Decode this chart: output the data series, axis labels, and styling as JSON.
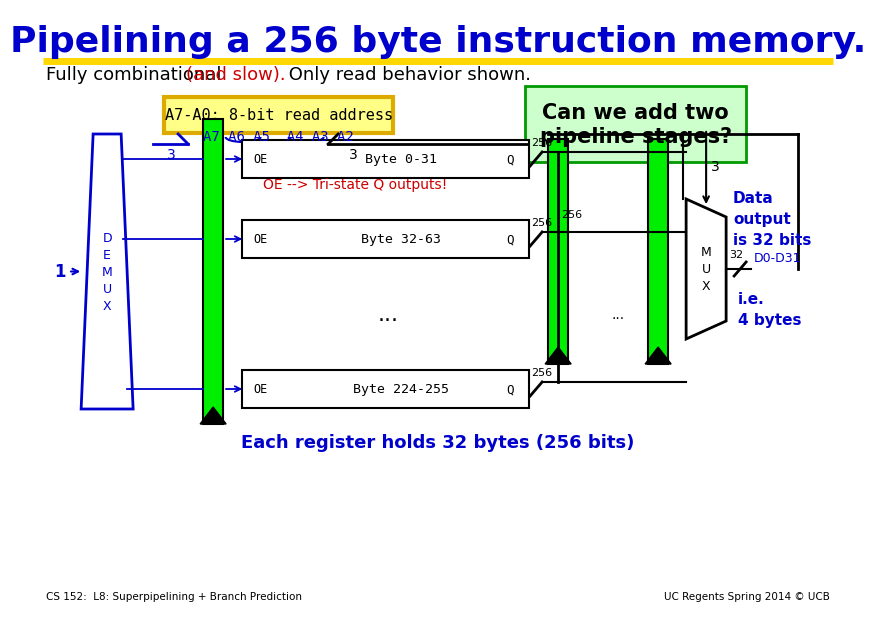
{
  "title": "Pipelining a 256 byte instruction memory.",
  "subtitle_black1": "Fully combinational ",
  "subtitle_red": "(and slow).",
  "subtitle_black2": " Only read behavior shown.",
  "title_color": "#0000CC",
  "title_fontsize": 26,
  "subtitle_fontsize": 13,
  "yellow_line_color": "#FFD700",
  "green_color": "#00EE00",
  "blue_color": "#0000CC",
  "black_color": "#000000",
  "red_color": "#CC0000",
  "bg_color": "#FFFFFF",
  "box_label": "A7-A0: 8-bit read address",
  "box_fill": "#FFFF88",
  "box_border": "#DDAA00",
  "green_box_label": "Can we add two\npipeline stages?",
  "green_box_fill": "#CCFFCC",
  "green_box_border": "#009900",
  "addr_line": "A7 A6 A5  A4 A3 A2",
  "oe_text": "OE --> Tri-state Q outputs!",
  "byte_labels": [
    "Byte 0-31",
    "Byte 32-63",
    "Byte 224-255"
  ],
  "each_reg_label": "Each register holds 32 bytes (256 bits)",
  "footer_left": "CS 152:  L8: Superpipelining + Branch Prediction",
  "footer_right": "UC Regents Spring 2014 © UCB",
  "demux_letters": "D\nE\nM\nU\nX",
  "mux_letters": "M\nU\nX",
  "data_out_text": "Data\noutput\nis 32 bits",
  "ie4bytes_text": "i.e.\n4 bytes"
}
